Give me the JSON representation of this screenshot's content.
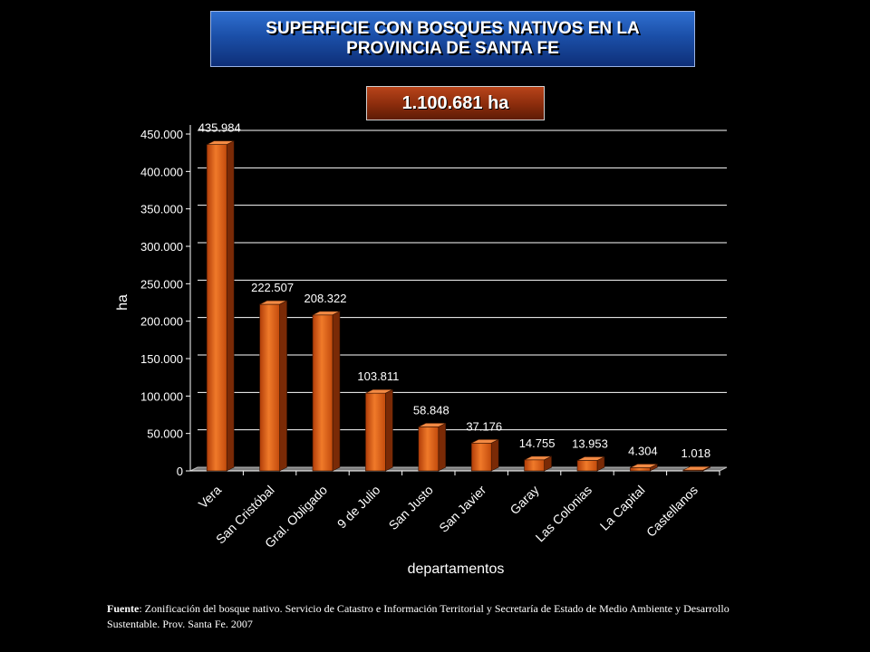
{
  "header": {
    "title": "SUPERFICIE CON BOSQUES NATIVOS EN LA\nPROVINCIA DE SANTA FE",
    "total": "1.100.681 ha"
  },
  "chart_data": {
    "type": "bar",
    "title": "SUPERFICIE CON BOSQUES NATIVOS EN LA PROVINCIA DE SANTA FE",
    "xlabel": "departamentos",
    "ylabel": "ha",
    "ylim": [
      0,
      450000
    ],
    "yticks": [
      0,
      50000,
      100000,
      150000,
      200000,
      250000,
      300000,
      350000,
      400000,
      450000
    ],
    "ytick_labels": [
      "0",
      "50.000",
      "100.000",
      "150.000",
      "200.000",
      "250.000",
      "300.000",
      "350.000",
      "400.000",
      "450.000"
    ],
    "categories": [
      "Vera",
      "San Cristóbal",
      "Gral. Obligado",
      "9 de Julio",
      "San Justo",
      "San Javier",
      "Garay",
      "Las Colonias",
      "La Capital",
      "Castellanos"
    ],
    "values": [
      435984,
      222507,
      208322,
      103811,
      58848,
      37176,
      14755,
      13953,
      4304,
      1018
    ],
    "data_labels": [
      "435.984",
      "222.507",
      "208.322",
      "103.811",
      "58.848",
      "37.176",
      "14.755",
      "13.953",
      "4.304",
      "1.018"
    ],
    "grid": true,
    "bar_color": "#e0601a"
  },
  "footnote": {
    "label": "Fuente",
    "text": ": Zonificación del bosque nativo. Servicio de Catastro e Información Territorial y Secretaría de Estado de Medio Ambiente y Desarrollo Sustentable. Prov. Santa Fe. 2007"
  }
}
